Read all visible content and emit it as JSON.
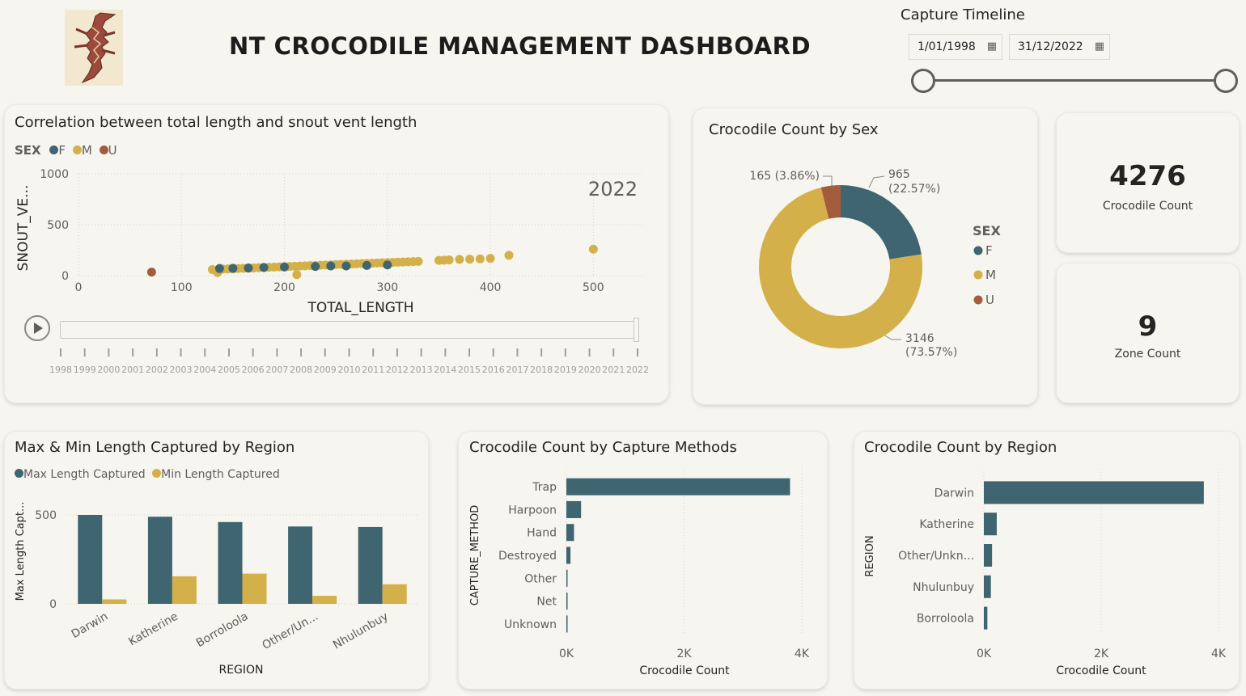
{
  "header": {
    "title": "NT CROCODILE MANAGEMENT DASHBOARD",
    "logo_icon": "crocodile-logo",
    "timeline_label": "Capture Timeline",
    "start_date": "1/01/1998",
    "end_date": "31/12/2022",
    "calendar_icon": "calendar-icon"
  },
  "colors": {
    "F": "#3f6570",
    "M": "#d4b04a",
    "U": "#a35d3c"
  },
  "scatter": {
    "title": "Correlation between total length and snout vent length",
    "legend_title": "SEX",
    "legend": [
      "F",
      "M",
      "U"
    ],
    "play_axis_year": "2022",
    "years": [
      "1998",
      "1999",
      "2000",
      "2001",
      "2002",
      "2003",
      "2004",
      "2005",
      "2006",
      "2007",
      "2008",
      "2009",
      "2010",
      "2011",
      "2012",
      "2013",
      "2014",
      "2015",
      "2016",
      "2017",
      "2018",
      "2019",
      "2020",
      "2021",
      "2022"
    ],
    "chart_data": {
      "type": "scatter",
      "xlabel": "TOTAL_LENGTH",
      "ylabel": "SNOUT_VE...",
      "xlim": [
        0,
        550
      ],
      "ylim": [
        0,
        1000
      ],
      "xticks": [
        "0",
        "100",
        "200",
        "300",
        "400",
        "500"
      ],
      "yticks": [
        "0",
        "500",
        "1000"
      ],
      "series": [
        {
          "name": "F",
          "points": [
            [
              137,
              70
            ],
            [
              150,
              72
            ],
            [
              165,
              75
            ],
            [
              180,
              80
            ],
            [
              200,
              85
            ],
            [
              230,
              90
            ],
            [
              245,
              95
            ],
            [
              260,
              95
            ],
            [
              280,
              100
            ],
            [
              300,
              105
            ]
          ]
        },
        {
          "name": "M",
          "points": [
            [
              130,
              60
            ],
            [
              140,
              64
            ],
            [
              145,
              66
            ],
            [
              150,
              68
            ],
            [
              155,
              70
            ],
            [
              160,
              72
            ],
            [
              165,
              74
            ],
            [
              170,
              76
            ],
            [
              175,
              78
            ],
            [
              180,
              80
            ],
            [
              185,
              82
            ],
            [
              190,
              84
            ],
            [
              195,
              86
            ],
            [
              200,
              88
            ],
            [
              205,
              90
            ],
            [
              210,
              92
            ],
            [
              215,
              94
            ],
            [
              220,
              96
            ],
            [
              225,
              98
            ],
            [
              230,
              100
            ],
            [
              235,
              102
            ],
            [
              240,
              104
            ],
            [
              245,
              106
            ],
            [
              250,
              108
            ],
            [
              255,
              110
            ],
            [
              260,
              112
            ],
            [
              265,
              114
            ],
            [
              270,
              116
            ],
            [
              275,
              118
            ],
            [
              280,
              120
            ],
            [
              285,
              122
            ],
            [
              290,
              124
            ],
            [
              295,
              126
            ],
            [
              300,
              128
            ],
            [
              305,
              130
            ],
            [
              310,
              132
            ],
            [
              315,
              134
            ],
            [
              320,
              136
            ],
            [
              325,
              138
            ],
            [
              330,
              140
            ],
            [
              350,
              150
            ],
            [
              355,
              152
            ],
            [
              360,
              155
            ],
            [
              370,
              160
            ],
            [
              380,
              162
            ],
            [
              390,
              165
            ],
            [
              400,
              170
            ],
            [
              418,
              200
            ],
            [
              500,
              260
            ],
            [
              135,
              30
            ],
            [
              212,
              10
            ]
          ]
        },
        {
          "name": "U",
          "points": [
            [
              71,
              35
            ]
          ]
        }
      ]
    }
  },
  "donut": {
    "title": "Crocodile Count by Sex",
    "legend_title": "SEX",
    "legend": [
      "F",
      "M",
      "U"
    ],
    "labels": {
      "F_value": "965",
      "F_pct": "(22.57%)",
      "M_value": "3146",
      "M_pct": "(73.57%)",
      "U_label": "165 (3.86%)"
    },
    "chart_data": {
      "type": "pie",
      "categories": [
        "F",
        "M",
        "U"
      ],
      "values": [
        965,
        3146,
        165
      ]
    }
  },
  "kpis": [
    {
      "value": "4276",
      "label": "Crocodile Count"
    },
    {
      "value": "9",
      "label": "Zone Count"
    }
  ],
  "region_length": {
    "title": "Max & Min Length Captured by Region",
    "legend": [
      "Max Length Captured",
      "Min Length Captured"
    ],
    "chart_data": {
      "type": "bar",
      "categories": [
        "Darwin",
        "Katherine",
        "Borroloola",
        "Other/Un...",
        "Nhulunbuy"
      ],
      "series": [
        {
          "name": "Max Length Captured",
          "values": [
            500,
            490,
            460,
            435,
            432
          ]
        },
        {
          "name": "Min Length Captured",
          "values": [
            25,
            155,
            170,
            45,
            110
          ]
        }
      ],
      "xlabel": "REGION",
      "ylabel": "Max Length Capt...",
      "ylim": [
        0,
        600
      ],
      "yticks": [
        "0",
        "500"
      ]
    }
  },
  "capture_methods": {
    "title": "Crocodile Count by Capture Methods",
    "chart_data": {
      "type": "bar",
      "categories": [
        "Trap",
        "Harpoon",
        "Hand",
        "Destroyed",
        "Other",
        "Net",
        "Unknown"
      ],
      "values": [
        3800,
        250,
        130,
        70,
        15,
        10,
        5
      ],
      "xlabel": "Crocodile Count",
      "ylabel": "CAPTURE_METHOD",
      "xlim": [
        0,
        4000
      ],
      "xticks": [
        "0K",
        "2K",
        "4K"
      ]
    }
  },
  "count_region": {
    "title": "Crocodile Count by Region",
    "chart_data": {
      "type": "bar",
      "categories": [
        "Darwin",
        "Katherine",
        "Other/Unkn...",
        "Nhulunbuy",
        "Borroloola"
      ],
      "values": [
        3750,
        220,
        140,
        120,
        60
      ],
      "xlabel": "Crocodile Count",
      "ylabel": "REGION",
      "xlim": [
        0,
        4000
      ],
      "xticks": [
        "0K",
        "2K",
        "4K"
      ]
    }
  }
}
